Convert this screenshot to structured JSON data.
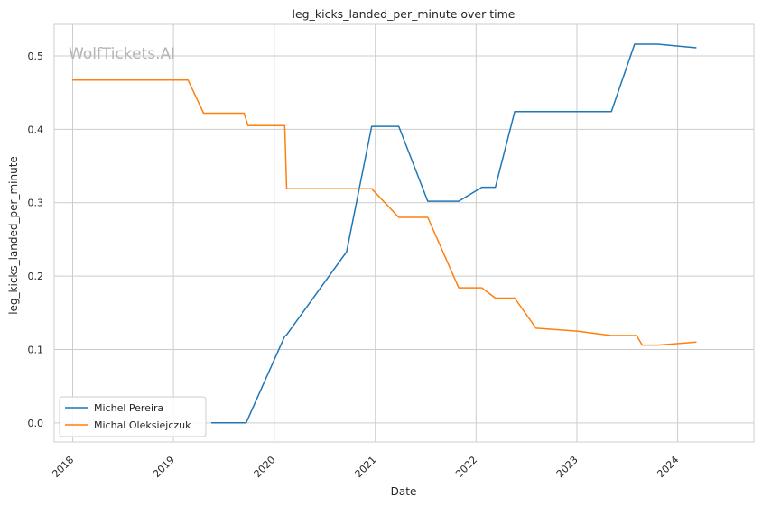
{
  "chart_data": {
    "type": "line",
    "title": "leg_kicks_landed_per_minute over time",
    "xlabel": "Date",
    "ylabel": "leg_kicks_landed_per_minute",
    "watermark": "WolfTickets.AI",
    "xlim": [
      "2017-10-26",
      "2024-10-03"
    ],
    "ylim": [
      -0.026,
      0.543
    ],
    "x_ticks": [
      "2018",
      "2019",
      "2020",
      "2021",
      "2022",
      "2023",
      "2024"
    ],
    "y_ticks": [
      "0.0",
      "0.1",
      "0.2",
      "0.3",
      "0.4",
      "0.5"
    ],
    "grid": true,
    "legend_position": "lower-left",
    "series": [
      {
        "name": "Michel Pereira",
        "color": "#1f77b4",
        "points": [
          {
            "x": "2019-05-18",
            "y": 0.0
          },
          {
            "x": "2019-09-21",
            "y": 0.0
          },
          {
            "x": "2020-02-08",
            "y": 0.118
          },
          {
            "x": "2020-02-15",
            "y": 0.12
          },
          {
            "x": "2020-09-19",
            "y": 0.233
          },
          {
            "x": "2020-12-19",
            "y": 0.404
          },
          {
            "x": "2021-03-27",
            "y": 0.404
          },
          {
            "x": "2021-07-10",
            "y": 0.302
          },
          {
            "x": "2021-10-30",
            "y": 0.302
          },
          {
            "x": "2022-01-22",
            "y": 0.321
          },
          {
            "x": "2022-03-12",
            "y": 0.321
          },
          {
            "x": "2022-05-21",
            "y": 0.424
          },
          {
            "x": "2023-05-06",
            "y": 0.424
          },
          {
            "x": "2023-07-29",
            "y": 0.516
          },
          {
            "x": "2023-10-21",
            "y": 0.516
          },
          {
            "x": "2024-03-09",
            "y": 0.511
          }
        ]
      },
      {
        "name": "Michal Oleksiejczuk",
        "color": "#ff7f0e",
        "points": [
          {
            "x": "2017-12-30",
            "y": 0.467
          },
          {
            "x": "2019-02-23",
            "y": 0.467
          },
          {
            "x": "2019-04-20",
            "y": 0.422
          },
          {
            "x": "2019-09-14",
            "y": 0.422
          },
          {
            "x": "2019-09-28",
            "y": 0.405
          },
          {
            "x": "2020-02-08",
            "y": 0.405
          },
          {
            "x": "2020-02-15",
            "y": 0.319
          },
          {
            "x": "2020-12-19",
            "y": 0.319
          },
          {
            "x": "2021-03-27",
            "y": 0.28
          },
          {
            "x": "2021-07-10",
            "y": 0.28
          },
          {
            "x": "2021-10-30",
            "y": 0.184
          },
          {
            "x": "2022-01-22",
            "y": 0.184
          },
          {
            "x": "2022-03-12",
            "y": 0.17
          },
          {
            "x": "2022-05-21",
            "y": 0.17
          },
          {
            "x": "2022-08-06",
            "y": 0.129
          },
          {
            "x": "2023-01-01",
            "y": 0.125
          },
          {
            "x": "2023-05-06",
            "y": 0.119
          },
          {
            "x": "2023-08-05",
            "y": 0.119
          },
          {
            "x": "2023-08-26",
            "y": 0.106
          },
          {
            "x": "2023-10-21",
            "y": 0.106
          },
          {
            "x": "2024-03-09",
            "y": 0.11
          }
        ]
      }
    ]
  }
}
